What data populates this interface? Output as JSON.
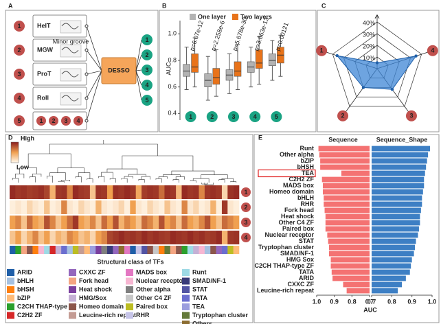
{
  "diagram": {
    "label": "A",
    "inputs": [
      {
        "number": "1",
        "name": "HelT"
      },
      {
        "number": "2",
        "name": "MGW"
      },
      {
        "number": "3",
        "name": "ProT"
      },
      {
        "number": "4",
        "name": "Roll"
      }
    ],
    "minor_groove": "Minor groove",
    "combined": {
      "number": "5",
      "parts": [
        "1",
        "2",
        "3",
        "4"
      ]
    },
    "center": "DESSO",
    "outputs": [
      "1",
      "2",
      "3",
      "4",
      "5"
    ]
  },
  "chart_data": [
    {
      "type": "box",
      "label": "B",
      "ylabel": "AUC",
      "categories": [
        "1",
        "2",
        "3",
        "4",
        "5"
      ],
      "series": [
        {
          "name": "One layer",
          "color": "#b3b3b3",
          "low": [
            0.58,
            0.5,
            0.55,
            0.6,
            0.65
          ],
          "q1": [
            0.68,
            0.6,
            0.65,
            0.71,
            0.76
          ],
          "median": [
            0.72,
            0.65,
            0.69,
            0.75,
            0.8
          ],
          "q3": [
            0.77,
            0.7,
            0.73,
            0.79,
            0.85
          ],
          "high": [
            0.9,
            0.83,
            0.85,
            0.9,
            0.95
          ]
        },
        {
          "name": "Two layers",
          "color": "#e8731a",
          "low": [
            0.6,
            0.53,
            0.58,
            0.62,
            0.68
          ],
          "q1": [
            0.71,
            0.62,
            0.68,
            0.74,
            0.78
          ],
          "median": [
            0.75,
            0.67,
            0.72,
            0.78,
            0.84
          ],
          "q3": [
            0.85,
            0.74,
            0.79,
            0.88,
            0.9
          ],
          "high": [
            0.97,
            0.88,
            0.92,
            0.98,
            0.99
          ]
        }
      ],
      "annotations": [
        "p=6.07e-12",
        "p=2.258e-6",
        "p=5.678e-30",
        "p=3.863e-13",
        "p=0.00121"
      ],
      "ylim": [
        0.35,
        1.1
      ],
      "yticks": [
        0.4,
        0.6,
        0.8,
        {
          "value": 1,
          "label": "1.0"
        }
      ]
    },
    {
      "type": "radar",
      "label": "C",
      "categories": [
        null,
        "4",
        "3",
        "2",
        "1"
      ],
      "values": [
        5,
        35,
        22,
        20,
        36
      ],
      "color": "#3d86d6",
      "rlim": [
        0,
        40
      ],
      "rticks": [
        {
          "value": 10,
          "label": "10%"
        },
        {
          "value": 20,
          "label": "20%"
        },
        {
          "value": 30,
          "label": "30%"
        },
        {
          "value": 40,
          "label": "40%"
        }
      ]
    },
    {
      "type": "heatmap",
      "label": "D",
      "scale_labels": [
        "High",
        "Low"
      ],
      "rows": [
        "1",
        "2",
        "3",
        "4"
      ],
      "values": [
        [
          0.95,
          0.9,
          0.92,
          0.88,
          0.9,
          0.93,
          0.85,
          0.4,
          0.9,
          0.92,
          0.6,
          0.95,
          0.9,
          0.88,
          0.3,
          0.92,
          0.9,
          0.5,
          0.93,
          0.9,
          0.95,
          0.9,
          0.45,
          0.88,
          0.92,
          0.9,
          0.7,
          0.93,
          0.9,
          0.35,
          0.95,
          0.9,
          0.92,
          0.6,
          0.9,
          0.93,
          0.9,
          0.2,
          0.92,
          0.95
        ],
        [
          0.05,
          0.1,
          0.05,
          0.2,
          0.1,
          0.05,
          0.3,
          0.05,
          0.1,
          0.6,
          0.1,
          0.05,
          0.2,
          0.1,
          0.05,
          0.4,
          0.1,
          0.05,
          0.1,
          0.2,
          0.05,
          0.5,
          0.1,
          0.05,
          0.2,
          0.1,
          0.05,
          0.3,
          0.1,
          0.05,
          0.6,
          0.1,
          0.2,
          0.05,
          0.1,
          0.4,
          0.05,
          0.9,
          0.1,
          0.05
        ],
        [
          0.5,
          0.6,
          0.3,
          0.7,
          0.5,
          0.4,
          0.8,
          0.6,
          0.3,
          0.5,
          0.7,
          0.9,
          0.5,
          0.4,
          0.6,
          0.3,
          0.7,
          0.5,
          0.8,
          0.4,
          0.6,
          0.5,
          0.3,
          0.7,
          0.6,
          0.4,
          0.8,
          0.5,
          0.6,
          0.3,
          0.7,
          0.5,
          0.4,
          0.6,
          0.8,
          0.5,
          0.3,
          0.7,
          0.6,
          0.5
        ],
        [
          0.3,
          0.5,
          0.2,
          0.4,
          0.6,
          0.3,
          0.5,
          0.2,
          0.4,
          0.3,
          0.6,
          0.5,
          0.3,
          0.4,
          0.2,
          0.5,
          0.6,
          0.85,
          0.9,
          0.95,
          0.9,
          0.92,
          0.88,
          0.95,
          0.9,
          0.93,
          0.9,
          0.88,
          0.95,
          0.92,
          0.9,
          0.95,
          0.9,
          0.93,
          0.88,
          0.9,
          0.95,
          0.4,
          0.9,
          0.92
        ]
      ],
      "column_classes": [
        0,
        4,
        7,
        10,
        2,
        13,
        18,
        5,
        9,
        21,
        1,
        16,
        11,
        3,
        22,
        8,
        14,
        19,
        6,
        24,
        12,
        0,
        17,
        20,
        10,
        15,
        2,
        23,
        7,
        10,
        4,
        18,
        9,
        13,
        1,
        10,
        6,
        21,
        16,
        3
      ],
      "legend_title": "Structural class of TFs",
      "classes": [
        {
          "name": "ARID",
          "color": "#1f5fa8"
        },
        {
          "name": "bHLH",
          "color": "#a6c1e0"
        },
        {
          "name": "bHSH",
          "color": "#ff7f0e"
        },
        {
          "name": "bZIP",
          "color": "#ffbb78"
        },
        {
          "name": "C2CH THAP-type ZF",
          "color": "#2ca02c"
        },
        {
          "name": "C2H2 ZF",
          "color": "#d62728"
        },
        {
          "name": "CXXC ZF",
          "color": "#9467bd"
        },
        {
          "name": "Fork head",
          "color": "#f4a582"
        },
        {
          "name": "Heat shock",
          "color": "#7b3f9e"
        },
        {
          "name": "HMG/Sox",
          "color": "#c5b0d5"
        },
        {
          "name": "Homeo domain",
          "color": "#8c564b"
        },
        {
          "name": "Leucine-rich repeat",
          "color": "#c49c94"
        },
        {
          "name": "MADS box",
          "color": "#e377c2"
        },
        {
          "name": "Nuclear receptor",
          "color": "#f7b6d2"
        },
        {
          "name": "Other alpha",
          "color": "#7f7f7f"
        },
        {
          "name": "Other C4 ZF",
          "color": "#c7c7c7"
        },
        {
          "name": "Paired box",
          "color": "#bcbd22"
        },
        {
          "name": "RHR",
          "color": "#c6c4e8"
        },
        {
          "name": "Runt",
          "color": "#9edae5"
        },
        {
          "name": "SMAD/NF-1",
          "color": "#393b79"
        },
        {
          "name": "STAT",
          "color": "#5254a3"
        },
        {
          "name": "TATA",
          "color": "#6b6ecf"
        },
        {
          "name": "TEA",
          "color": "#9c9ede"
        },
        {
          "name": "Tryptophan cluster",
          "color": "#637939"
        },
        {
          "name": "Others",
          "color": "#8c6d31"
        }
      ]
    },
    {
      "type": "mirror_bar",
      "label": "E",
      "xlabel": "AUC",
      "categories": [
        "Runt",
        "Other alpha",
        "bZIP",
        "bHSH",
        "TEA",
        "C2H2 ZF",
        "MADS box",
        "Homeo domain",
        "bHLH",
        "RHR",
        "Fork head",
        "Heat shock",
        "Other C4 ZF",
        "Paired box",
        "Nuclear receptor",
        "STAT",
        "Tryptophan cluster",
        "SMAD/NF-1",
        "HMG Sox",
        "C2CH THAP-type ZF",
        "TATA",
        "ARID",
        "CXXC ZF",
        "Leucine-rich repeat"
      ],
      "highlight_index": 4,
      "series": [
        {
          "name": "Sequence",
          "color": "#f47272",
          "values": [
            0.99,
            0.985,
            0.98,
            0.98,
            0.86,
            0.97,
            0.965,
            0.965,
            0.96,
            0.96,
            0.955,
            0.95,
            0.95,
            0.95,
            0.94,
            0.935,
            0.93,
            0.93,
            0.92,
            0.92,
            0.915,
            0.91,
            0.85,
            0.83
          ],
          "xlim": [
            1,
            0.7
          ],
          "xticks": [
            {
              "value": 1,
              "label": "1.0"
            },
            0.9,
            0.8,
            0.7
          ]
        },
        {
          "name": "Sequence_Shape",
          "color": "#3d7fc4",
          "values": [
            0.99,
            0.98,
            0.975,
            0.97,
            0.965,
            0.96,
            0.96,
            0.955,
            0.95,
            0.95,
            0.945,
            0.94,
            0.94,
            0.935,
            0.93,
            0.92,
            0.915,
            0.91,
            0.9,
            0.895,
            0.89,
            0.87,
            0.85,
            0.83
          ],
          "xlim": [
            0.7,
            1
          ],
          "xticks": [
            0.7,
            0.8,
            0.9,
            {
              "value": 1,
              "label": "1.0"
            }
          ]
        }
      ]
    }
  ]
}
